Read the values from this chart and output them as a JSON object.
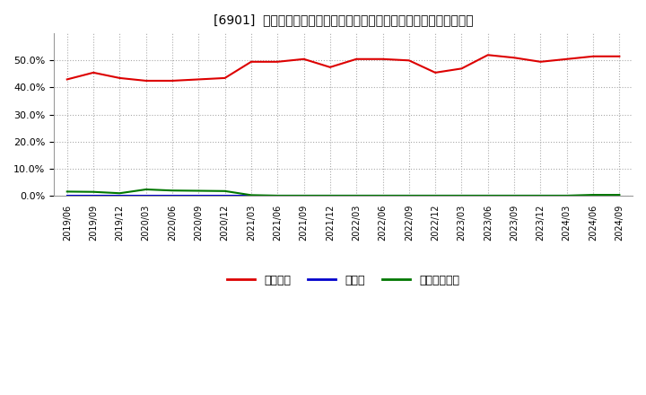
{
  "title": "[6901]  自己資本、のれん、繰延税金資産の総資産に対する比率の推移",
  "x_labels": [
    "2019/06",
    "2019/09",
    "2019/12",
    "2020/03",
    "2020/06",
    "2020/09",
    "2020/12",
    "2021/03",
    "2021/06",
    "2021/09",
    "2021/12",
    "2022/03",
    "2022/06",
    "2022/09",
    "2022/12",
    "2023/03",
    "2023/06",
    "2023/09",
    "2023/12",
    "2024/03",
    "2024/06",
    "2024/09"
  ],
  "equity": [
    43.0,
    45.5,
    43.5,
    42.5,
    42.5,
    43.0,
    43.5,
    49.5,
    49.5,
    50.5,
    47.5,
    50.5,
    50.5,
    50.0,
    45.5,
    47.0,
    52.0,
    51.0,
    49.5,
    50.5,
    51.5,
    51.5
  ],
  "goodwill": [
    0.0,
    0.0,
    0.0,
    0.0,
    0.0,
    0.0,
    0.0,
    0.0,
    0.0,
    0.0,
    0.0,
    0.0,
    0.0,
    0.0,
    0.0,
    0.0,
    0.0,
    0.0,
    0.0,
    0.0,
    0.0,
    0.0
  ],
  "deferred_tax": [
    1.6,
    1.5,
    1.0,
    2.4,
    2.0,
    1.9,
    1.8,
    0.3,
    0.1,
    0.1,
    0.1,
    0.1,
    0.1,
    0.1,
    0.1,
    0.1,
    0.1,
    0.1,
    0.1,
    0.1,
    0.4,
    0.4
  ],
  "equity_color": "#dd0000",
  "goodwill_color": "#0000cc",
  "deferred_tax_color": "#007700",
  "background_color": "#ffffff",
  "plot_bg_color": "#ffffff",
  "grid_color": "#aaaaaa",
  "ylim": [
    0,
    60
  ],
  "yticks": [
    0,
    10,
    20,
    30,
    40,
    50
  ],
  "legend_labels": [
    "自己資本",
    "のれん",
    "繰延税金資産"
  ]
}
